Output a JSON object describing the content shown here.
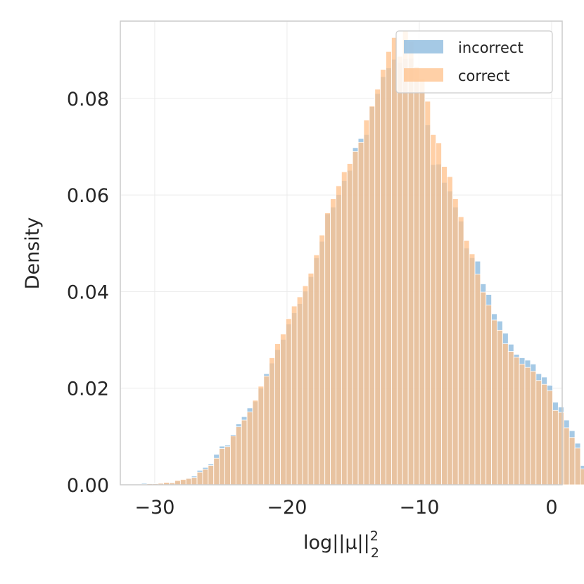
{
  "chart_data": {
    "type": "histogram",
    "xlabel": "log||μ||",
    "xlabel_sup": "2",
    "xlabel_sub": "2",
    "ylabel": "Density",
    "xlim": [
      -32.6,
      0.8
    ],
    "ylim": [
      0,
      0.096
    ],
    "x_ticks": [
      -30,
      -20,
      -10,
      0
    ],
    "x_tick_labels": [
      "−30",
      "−20",
      "−10",
      "0"
    ],
    "y_ticks": [
      0.0,
      0.02,
      0.04,
      0.06,
      0.08
    ],
    "y_tick_labels": [
      "0.00",
      "0.02",
      "0.04",
      "0.06",
      "0.08"
    ],
    "grid": true,
    "legend_position": "top-right",
    "bin_start": -31.0,
    "bin_width": 0.42,
    "series": [
      {
        "name": "incorrect",
        "color": "#8fbbdf",
        "opacity": 0.8,
        "values": [
          0.0003,
          0.0003,
          0.0003,
          0.0003,
          0.0004,
          0.0005,
          0.0008,
          0.001,
          0.0014,
          0.0018,
          0.003,
          0.0036,
          0.0043,
          0.0063,
          0.008,
          0.0082,
          0.0104,
          0.0126,
          0.0141,
          0.0159,
          0.0173,
          0.02,
          0.023,
          0.0252,
          0.028,
          0.0301,
          0.0333,
          0.0356,
          0.0375,
          0.0401,
          0.0431,
          0.047,
          0.0504,
          0.0561,
          0.0575,
          0.0601,
          0.063,
          0.0651,
          0.0698,
          0.0717,
          0.0725,
          0.0783,
          0.081,
          0.0845,
          0.0863,
          0.0881,
          0.0874,
          0.0882,
          0.0883,
          0.084,
          0.0815,
          0.0745,
          0.0663,
          0.0664,
          0.0626,
          0.0608,
          0.0575,
          0.0546,
          0.049,
          0.047,
          0.0463,
          0.0416,
          0.0394,
          0.0354,
          0.0339,
          0.0314,
          0.0291,
          0.027,
          0.0263,
          0.0258,
          0.025,
          0.023,
          0.0223,
          0.0206,
          0.0171,
          0.0161,
          0.0134,
          0.0112,
          0.0086,
          0.004,
          0.0025,
          0.0013
        ]
      },
      {
        "name": "correct",
        "color": "#ffc08a",
        "opacity": 0.75,
        "values": [
          0.0001,
          0.0002,
          0.0002,
          0.0003,
          0.0005,
          0.0004,
          0.0009,
          0.0011,
          0.0013,
          0.0015,
          0.0026,
          0.0032,
          0.004,
          0.0055,
          0.0075,
          0.0079,
          0.0101,
          0.012,
          0.0134,
          0.0151,
          0.0175,
          0.0204,
          0.0225,
          0.0263,
          0.0292,
          0.0312,
          0.0344,
          0.037,
          0.0389,
          0.0412,
          0.0438,
          0.0476,
          0.0517,
          0.0563,
          0.0592,
          0.0619,
          0.0648,
          0.0665,
          0.069,
          0.0709,
          0.0755,
          0.0784,
          0.0819,
          0.086,
          0.0897,
          0.0926,
          0.0887,
          0.094,
          0.0918,
          0.0866,
          0.084,
          0.0794,
          0.0725,
          0.0708,
          0.0659,
          0.0638,
          0.0592,
          0.0555,
          0.0506,
          0.0478,
          0.0436,
          0.0399,
          0.0372,
          0.0341,
          0.032,
          0.0292,
          0.0276,
          0.0264,
          0.025,
          0.0243,
          0.0235,
          0.0216,
          0.0208,
          0.0195,
          0.0154,
          0.015,
          0.0118,
          0.0098,
          0.0076,
          0.0033,
          0.0018,
          0.0009
        ]
      }
    ]
  }
}
